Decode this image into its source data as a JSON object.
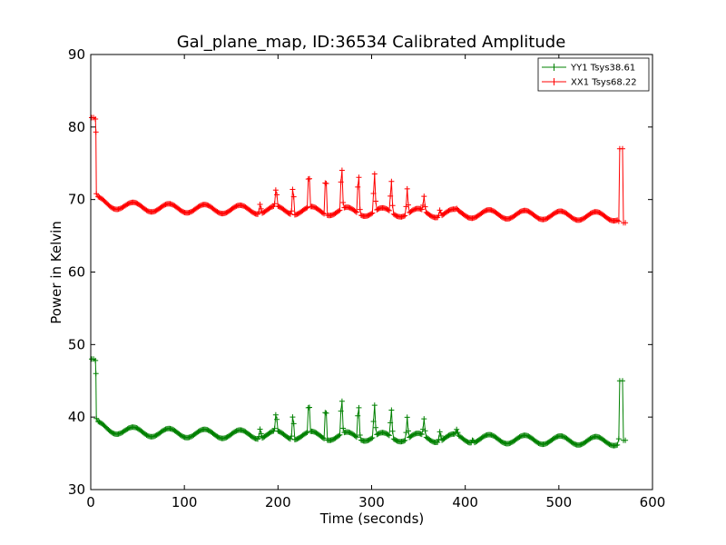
{
  "chart_data": {
    "type": "line",
    "title": "Gal_plane_map, ID:36534 Calibrated Amplitude",
    "xlabel": "Time (seconds)",
    "ylabel": "Power in Kelvin",
    "xlim": [
      0,
      600
    ],
    "ylim": [
      30,
      90
    ],
    "xticks": [
      "0",
      "100",
      "200",
      "300",
      "400",
      "500",
      "600"
    ],
    "yticks": [
      "30",
      "40",
      "50",
      "60",
      "70",
      "80",
      "90"
    ],
    "grid": false,
    "legend_position": "top-right",
    "marker": "+",
    "series": [
      {
        "name": "YY1 Tsys38.61",
        "color": "#008000",
        "baseline": 38.0,
        "start_value": 48.0,
        "end_spike": [
          [
            564,
            37.0
          ],
          [
            565,
            45.0
          ],
          [
            568,
            45.0
          ],
          [
            569,
            36.8
          ],
          [
            571,
            36.8
          ]
        ],
        "peaks": [
          [
            181,
            39.5
          ],
          [
            198,
            40.8
          ],
          [
            216,
            42.0
          ],
          [
            233,
            43.0
          ],
          [
            251,
            43.5
          ],
          [
            268,
            43.7
          ],
          [
            286,
            43.5
          ],
          [
            303,
            42.8
          ],
          [
            321,
            42.2
          ],
          [
            338,
            41.0
          ],
          [
            356,
            40.3
          ],
          [
            373,
            39.5
          ],
          [
            391,
            38.8
          ],
          [
            408,
            38.5
          ]
        ]
      },
      {
        "name": "XX1 Tsys68.22",
        "color": "#ff0000",
        "baseline": 69.0,
        "start_value": 81.3,
        "end_spike": [
          [
            564,
            67.0
          ],
          [
            565,
            77.0
          ],
          [
            568,
            77.0
          ],
          [
            569,
            66.8
          ],
          [
            571,
            66.8
          ]
        ],
        "peaks": [
          [
            181,
            70.5
          ],
          [
            198,
            71.8
          ],
          [
            216,
            73.5
          ],
          [
            233,
            74.8
          ],
          [
            251,
            75.5
          ],
          [
            268,
            75.8
          ],
          [
            286,
            75.5
          ],
          [
            303,
            74.8
          ],
          [
            321,
            73.8
          ],
          [
            338,
            72.5
          ],
          [
            356,
            71.0
          ],
          [
            373,
            70.0
          ],
          [
            391,
            69.2
          ],
          [
            408,
            68.8
          ]
        ]
      }
    ]
  }
}
